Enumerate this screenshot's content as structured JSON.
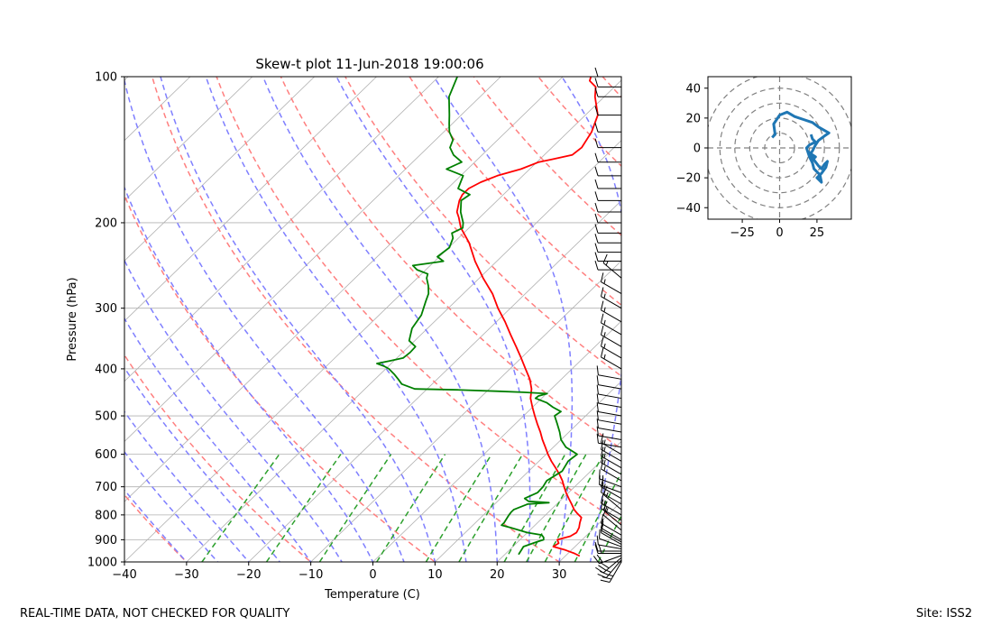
{
  "figure": {
    "footer_left": "REAL-TIME DATA, NOT CHECKED FOR QUALITY",
    "footer_right": "Site: ISS2"
  },
  "chart_data": [
    {
      "type": "line",
      "subtype": "skew-t log-p diagram",
      "title": "Skew-t plot 11-Jun-2018 19:00:06",
      "xlabel": "Temperature (C)",
      "ylabel": "Pressure (hPa)",
      "xlim": [
        -40,
        40
      ],
      "ylim": [
        1000,
        100
      ],
      "y_scale": "log",
      "x_ticks": [
        -40,
        -30,
        -20,
        -10,
        0,
        10,
        20,
        30
      ],
      "y_ticks": [
        100,
        200,
        300,
        400,
        500,
        600,
        700,
        800,
        900,
        1000
      ],
      "grid": true,
      "colors": {
        "temperature": "#ff0000",
        "dewpoint": "#008000",
        "dry_adiabats": "#ff7f7f",
        "moist_adiabats": "#7f7fff",
        "mixing_ratio": "#2ca02c",
        "isotherms": "#b0b0b0",
        "wind_barbs": "#000000"
      },
      "series": [
        {
          "key": "temperature",
          "pressure": [
            972,
            960,
            945,
            930,
            915,
            900,
            885,
            870,
            850,
            830,
            810,
            795,
            780,
            760,
            740,
            720,
            700,
            680,
            660,
            640,
            620,
            600,
            580,
            560,
            540,
            520,
            500,
            480,
            460,
            440,
            420,
            400,
            380,
            360,
            340,
            320,
            300,
            280,
            260,
            240,
            220,
            205,
            195,
            190,
            180,
            175,
            170,
            165,
            160,
            155,
            150,
            148,
            145,
            140,
            130,
            120,
            110,
            105,
            102,
            100
          ],
          "temperature": [
            32.3,
            31.0,
            29.0,
            26.5,
            26.8,
            26.0,
            27.5,
            27.9,
            27.5,
            26.8,
            26.2,
            24.9,
            23.7,
            22.4,
            21.0,
            19.6,
            18.3,
            17.0,
            15.5,
            13.8,
            12.0,
            10.3,
            8.7,
            7.0,
            5.4,
            3.6,
            1.8,
            0.0,
            -1.8,
            -3.2,
            -5.1,
            -7.5,
            -10.0,
            -12.7,
            -15.6,
            -18.6,
            -22.0,
            -25.3,
            -29.4,
            -33.5,
            -37.5,
            -41.3,
            -43.4,
            -44.6,
            -46.1,
            -46.6,
            -46.6,
            -45.7,
            -44.1,
            -41.4,
            -39.7,
            -38.0,
            -35.5,
            -35.2,
            -36.2,
            -38.0,
            -41.5,
            -43.0,
            -45.0,
            -45.5
          ]
        },
        {
          "key": "dewpoint",
          "pressure": [
            965,
            950,
            930,
            910,
            900,
            890,
            880,
            870,
            850,
            840,
            830,
            800,
            790,
            780,
            760,
            755,
            750,
            740,
            720,
            700,
            680,
            650,
            620,
            600,
            580,
            560,
            540,
            520,
            500,
            490,
            480,
            470,
            460,
            455,
            450,
            447,
            445,
            442,
            440,
            430,
            420,
            410,
            400,
            395,
            390,
            385,
            380,
            370,
            360,
            350,
            330,
            310,
            290,
            280,
            270,
            260,
            255,
            250,
            245,
            240,
            235,
            225,
            215,
            210,
            205,
            200,
            190,
            180,
            175,
            170,
            160,
            155,
            150,
            145,
            140,
            135,
            130,
            125,
            120,
            110,
            100
          ],
          "dewpoint": [
            22.2,
            22.0,
            21.7,
            23.0,
            23.8,
            23.4,
            22.7,
            20.0,
            16.5,
            14.6,
            14.6,
            14.1,
            14.0,
            14.0,
            15.3,
            18.5,
            15.0,
            13.9,
            15.0,
            14.9,
            14.5,
            15.4,
            14.7,
            15.0,
            12.0,
            10.0,
            8.5,
            6.8,
            5.0,
            5.3,
            3.3,
            1.6,
            -1.0,
            -0.9,
            0.1,
            -4.0,
            -8.0,
            -15.0,
            -22.0,
            -24.9,
            -26.3,
            -27.8,
            -29.5,
            -30.7,
            -32.3,
            -30.6,
            -29.0,
            -28.8,
            -28.9,
            -30.9,
            -32.5,
            -33.2,
            -34.8,
            -35.6,
            -36.9,
            -38.5,
            -39.0,
            -41.4,
            -42.8,
            -38.6,
            -40.3,
            -39.9,
            -40.9,
            -41.9,
            -41.0,
            -41.8,
            -44.0,
            -45.8,
            -45.4,
            -48.3,
            -49.6,
            -53.4,
            -52.1,
            -54.6,
            -56.4,
            -57.2,
            -59.1,
            -60.5,
            -61.9,
            -65.0,
            -67.0
          ]
        }
      ],
      "wind_barbs": {
        "pressure": [
          1000,
          990,
          980,
          970,
          960,
          950,
          940,
          930,
          920,
          910,
          900,
          880,
          860,
          840,
          820,
          800,
          780,
          760,
          740,
          720,
          700,
          680,
          660,
          640,
          620,
          600,
          580,
          560,
          540,
          520,
          500,
          480,
          460,
          440,
          420,
          400,
          380,
          360,
          340,
          320,
          300,
          280,
          260,
          250,
          240,
          230,
          220,
          210,
          200,
          190,
          180,
          170,
          160,
          150,
          140,
          130,
          120,
          110,
          105,
          100
        ],
        "speed_kt": [
          25,
          25,
          30,
          20,
          20,
          10,
          10,
          10,
          10,
          10,
          10,
          10,
          10,
          15,
          15,
          15,
          15,
          15,
          15,
          15,
          15,
          15,
          15,
          15,
          15,
          15,
          10,
          10,
          10,
          10,
          10,
          10,
          10,
          10,
          10,
          15,
          15,
          15,
          15,
          15,
          15,
          15,
          15,
          10,
          10,
          10,
          10,
          10,
          10,
          10,
          10,
          10,
          10,
          10,
          10,
          10,
          10,
          10,
          10,
          10
        ],
        "direction_deg": [
          210,
          220,
          230,
          250,
          270,
          270,
          280,
          290,
          300,
          300,
          300,
          300,
          310,
          310,
          300,
          300,
          310,
          300,
          300,
          290,
          290,
          300,
          300,
          300,
          300,
          300,
          280,
          280,
          280,
          280,
          280,
          280,
          280,
          280,
          280,
          300,
          300,
          300,
          300,
          300,
          300,
          300,
          310,
          270,
          270,
          270,
          270,
          270,
          270,
          270,
          270,
          270,
          270,
          270,
          270,
          270,
          270,
          270,
          270,
          270
        ]
      }
    },
    {
      "type": "line",
      "subtype": "hodograph",
      "xlim": [
        -48,
        48
      ],
      "ylim": [
        -48,
        48
      ],
      "x_ticks": [
        -25,
        0,
        25
      ],
      "y_ticks": [
        -40,
        -20,
        0,
        20,
        40
      ],
      "rings": [
        10,
        20,
        30,
        40,
        50
      ],
      "grid": true,
      "color": "#1f77b4",
      "u": [
        -5,
        -3,
        -4,
        0,
        5,
        10,
        16,
        22,
        26,
        33,
        30,
        26,
        24,
        22,
        20,
        23,
        24,
        21,
        20,
        23,
        26,
        28,
        30,
        32,
        31,
        28,
        25,
        28,
        27,
        23,
        22,
        20,
        19,
        18,
        20,
        24,
        22,
        21
      ],
      "v": [
        7,
        9,
        16,
        22,
        24,
        21,
        19,
        17,
        14,
        10,
        8,
        5,
        2,
        -2,
        -5,
        -7,
        -6,
        -4,
        -3,
        -8,
        -12,
        -14,
        -11,
        -9,
        -13,
        -17,
        -20,
        -23,
        -18,
        -14,
        -10,
        -6,
        -3,
        0,
        2,
        4,
        6,
        9
      ]
    }
  ]
}
